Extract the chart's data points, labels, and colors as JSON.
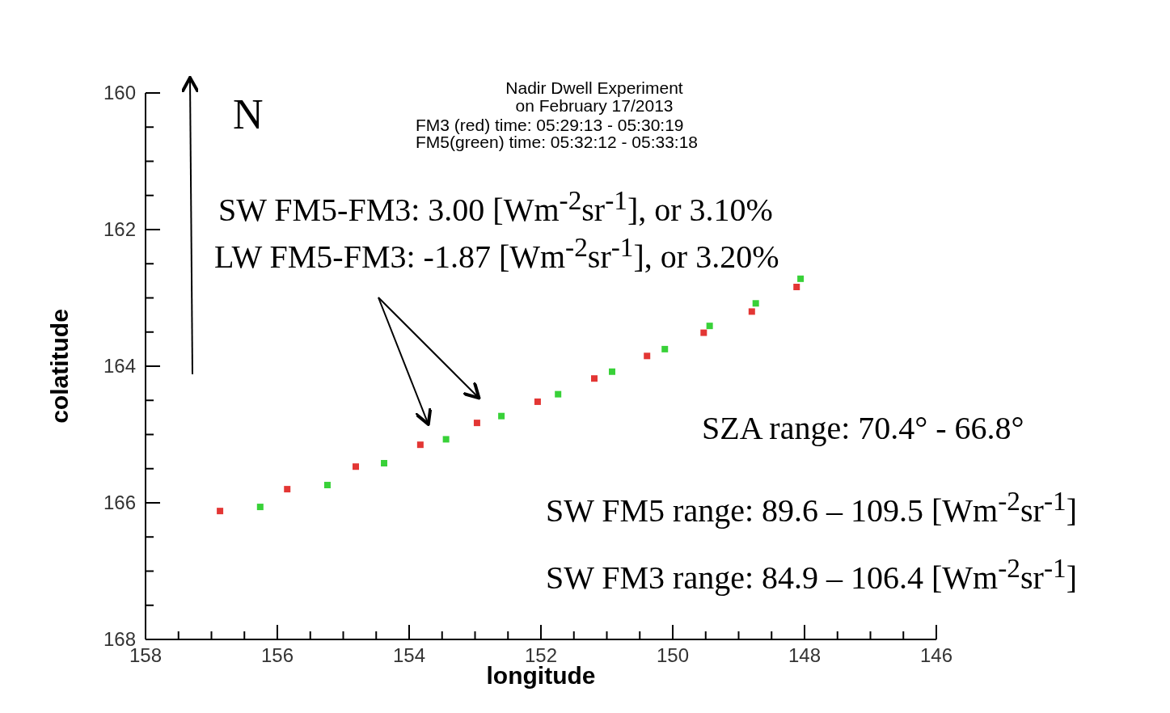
{
  "chart_data": {
    "type": "scatter",
    "title": "Nadir Dwell Experiment",
    "subtitle": "on February 17/2013",
    "xlabel": "longitude",
    "ylabel": "colatitude",
    "series": [
      {
        "color": "#e0201e",
        "x": [
          156.87,
          155.85,
          154.81,
          153.83,
          152.97,
          152.05,
          151.19,
          150.39,
          149.53,
          148.8,
          148.12
        ],
        "values": [
          166.12,
          165.8,
          165.47,
          165.15,
          164.83,
          164.52,
          164.18,
          163.85,
          163.51,
          163.2,
          162.84
        ]
      },
      {
        "color": "#22cc22",
        "x": [
          156.26,
          155.24,
          154.38,
          153.44,
          152.6,
          151.74,
          150.92,
          150.12,
          149.44,
          148.74,
          148.06
        ],
        "values": [
          166.06,
          165.74,
          165.42,
          165.07,
          164.73,
          164.41,
          164.08,
          163.75,
          163.41,
          163.08,
          162.72
        ]
      }
    ],
    "xlim": [
      158,
      146
    ],
    "ylim": [
      168,
      160
    ],
    "xticks": [
      158,
      {
        "value": 157.5,
        "label": null
      },
      {
        "value": 157,
        "label": null
      },
      {
        "value": 156.5,
        "label": null
      },
      156,
      {
        "value": 155.5,
        "label": null
      },
      {
        "value": 155,
        "label": null
      },
      {
        "value": 154.5,
        "label": null
      },
      154,
      {
        "value": 153.5,
        "label": null
      },
      {
        "value": 153,
        "label": null
      },
      {
        "value": 152.5,
        "label": null
      },
      152,
      {
        "value": 151.5,
        "label": null
      },
      {
        "value": 151,
        "label": null
      },
      {
        "value": 150.5,
        "label": null
      },
      150,
      {
        "value": 149.5,
        "label": null
      },
      {
        "value": 149,
        "label": null
      },
      {
        "value": 148.5,
        "label": null
      },
      148,
      {
        "value": 147.5,
        "label": null
      },
      {
        "value": 147,
        "label": null
      },
      {
        "value": 146.5,
        "label": null
      },
      146
    ],
    "yticks": [
      160,
      {
        "value": 160.5,
        "label": null
      },
      {
        "value": 161,
        "label": null
      },
      {
        "value": 161.5,
        "label": null
      },
      162,
      {
        "value": 162.5,
        "label": null
      },
      {
        "value": 163,
        "label": null
      },
      {
        "value": 163.5,
        "label": null
      },
      164,
      {
        "value": 164.5,
        "label": null
      },
      {
        "value": 165,
        "label": null
      },
      {
        "value": 165.5,
        "label": null
      },
      166,
      {
        "value": 166.5,
        "label": null
      },
      {
        "value": 167,
        "label": null
      },
      {
        "value": 167.5,
        "label": null
      },
      168
    ],
    "marker": "square",
    "grid": false,
    "legend": false,
    "annotations": [
      "FM3 (red) time: 05:29:13 - 05:30:19",
      "FM5(green) time: 05:32:12 - 05:33:18",
      "N",
      "SW FM5-FM3: 3.00 [Wm$^{-2}$sr$^{-1}$], or 3.10%",
      "LW FM5-FM3: -1.87 [Wm$^{-2}$sr$^{-1}$], or 3.20%",
      "SZA range: 70.4° - 66.8°",
      "SW FM5 range: 89.6 – 109.5 [Wm$^{-2}$sr$^{-1}$]",
      "SW FM3 range: 84.9 – 106.4 [Wm$^{-2}$sr$^{-1}$]"
    ]
  }
}
